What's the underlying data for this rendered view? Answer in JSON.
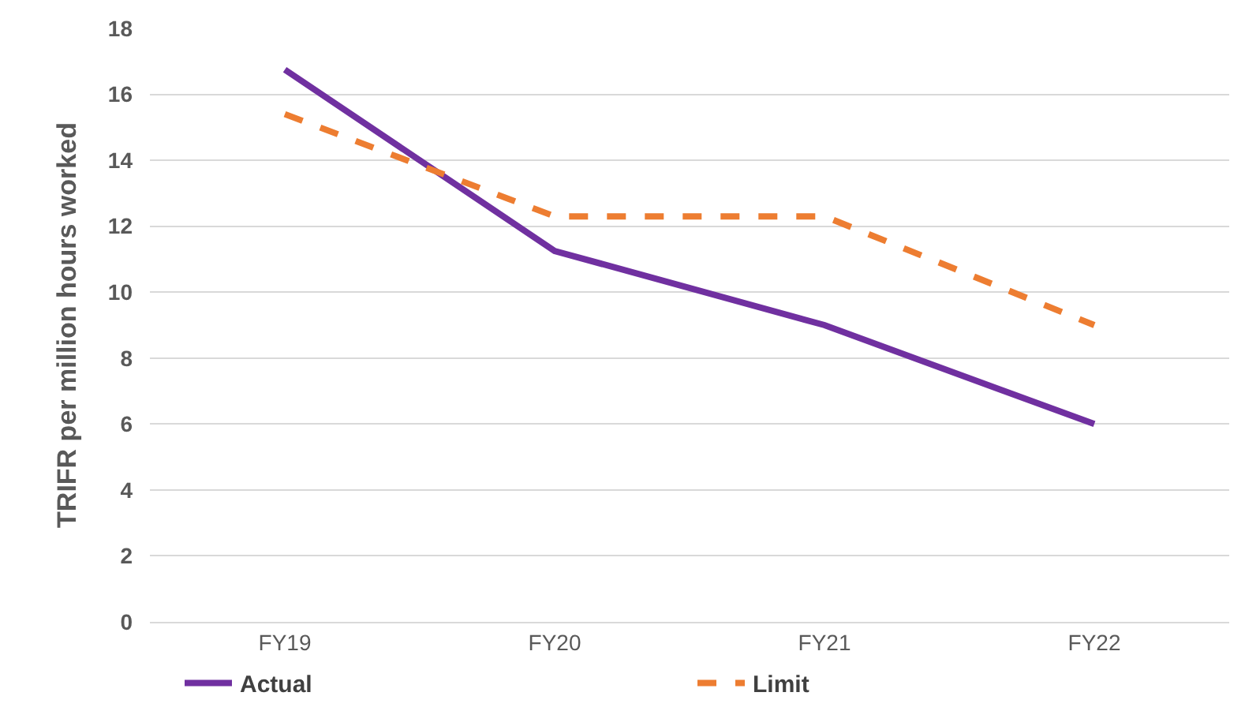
{
  "chart_data": {
    "type": "line",
    "ylabel": "TRIFR per million hours worked",
    "categories": [
      "FY19",
      "FY20",
      "FY21",
      "FY22"
    ],
    "series": [
      {
        "name": "Actual",
        "color": "#7030a0",
        "values": [
          16.75,
          11.25,
          9.0,
          6.0
        ],
        "line_style": "solid"
      },
      {
        "name": "Limit",
        "color": "#ed7d31",
        "values": [
          15.4,
          12.3,
          12.3,
          9.0
        ],
        "line_style": "dashed"
      }
    ],
    "ylim": [
      0,
      18
    ],
    "yticks": [
      0,
      2,
      4,
      6,
      8,
      10,
      12,
      14,
      16,
      18
    ],
    "grid": "y",
    "legend": "bottom",
    "marker": "none"
  }
}
